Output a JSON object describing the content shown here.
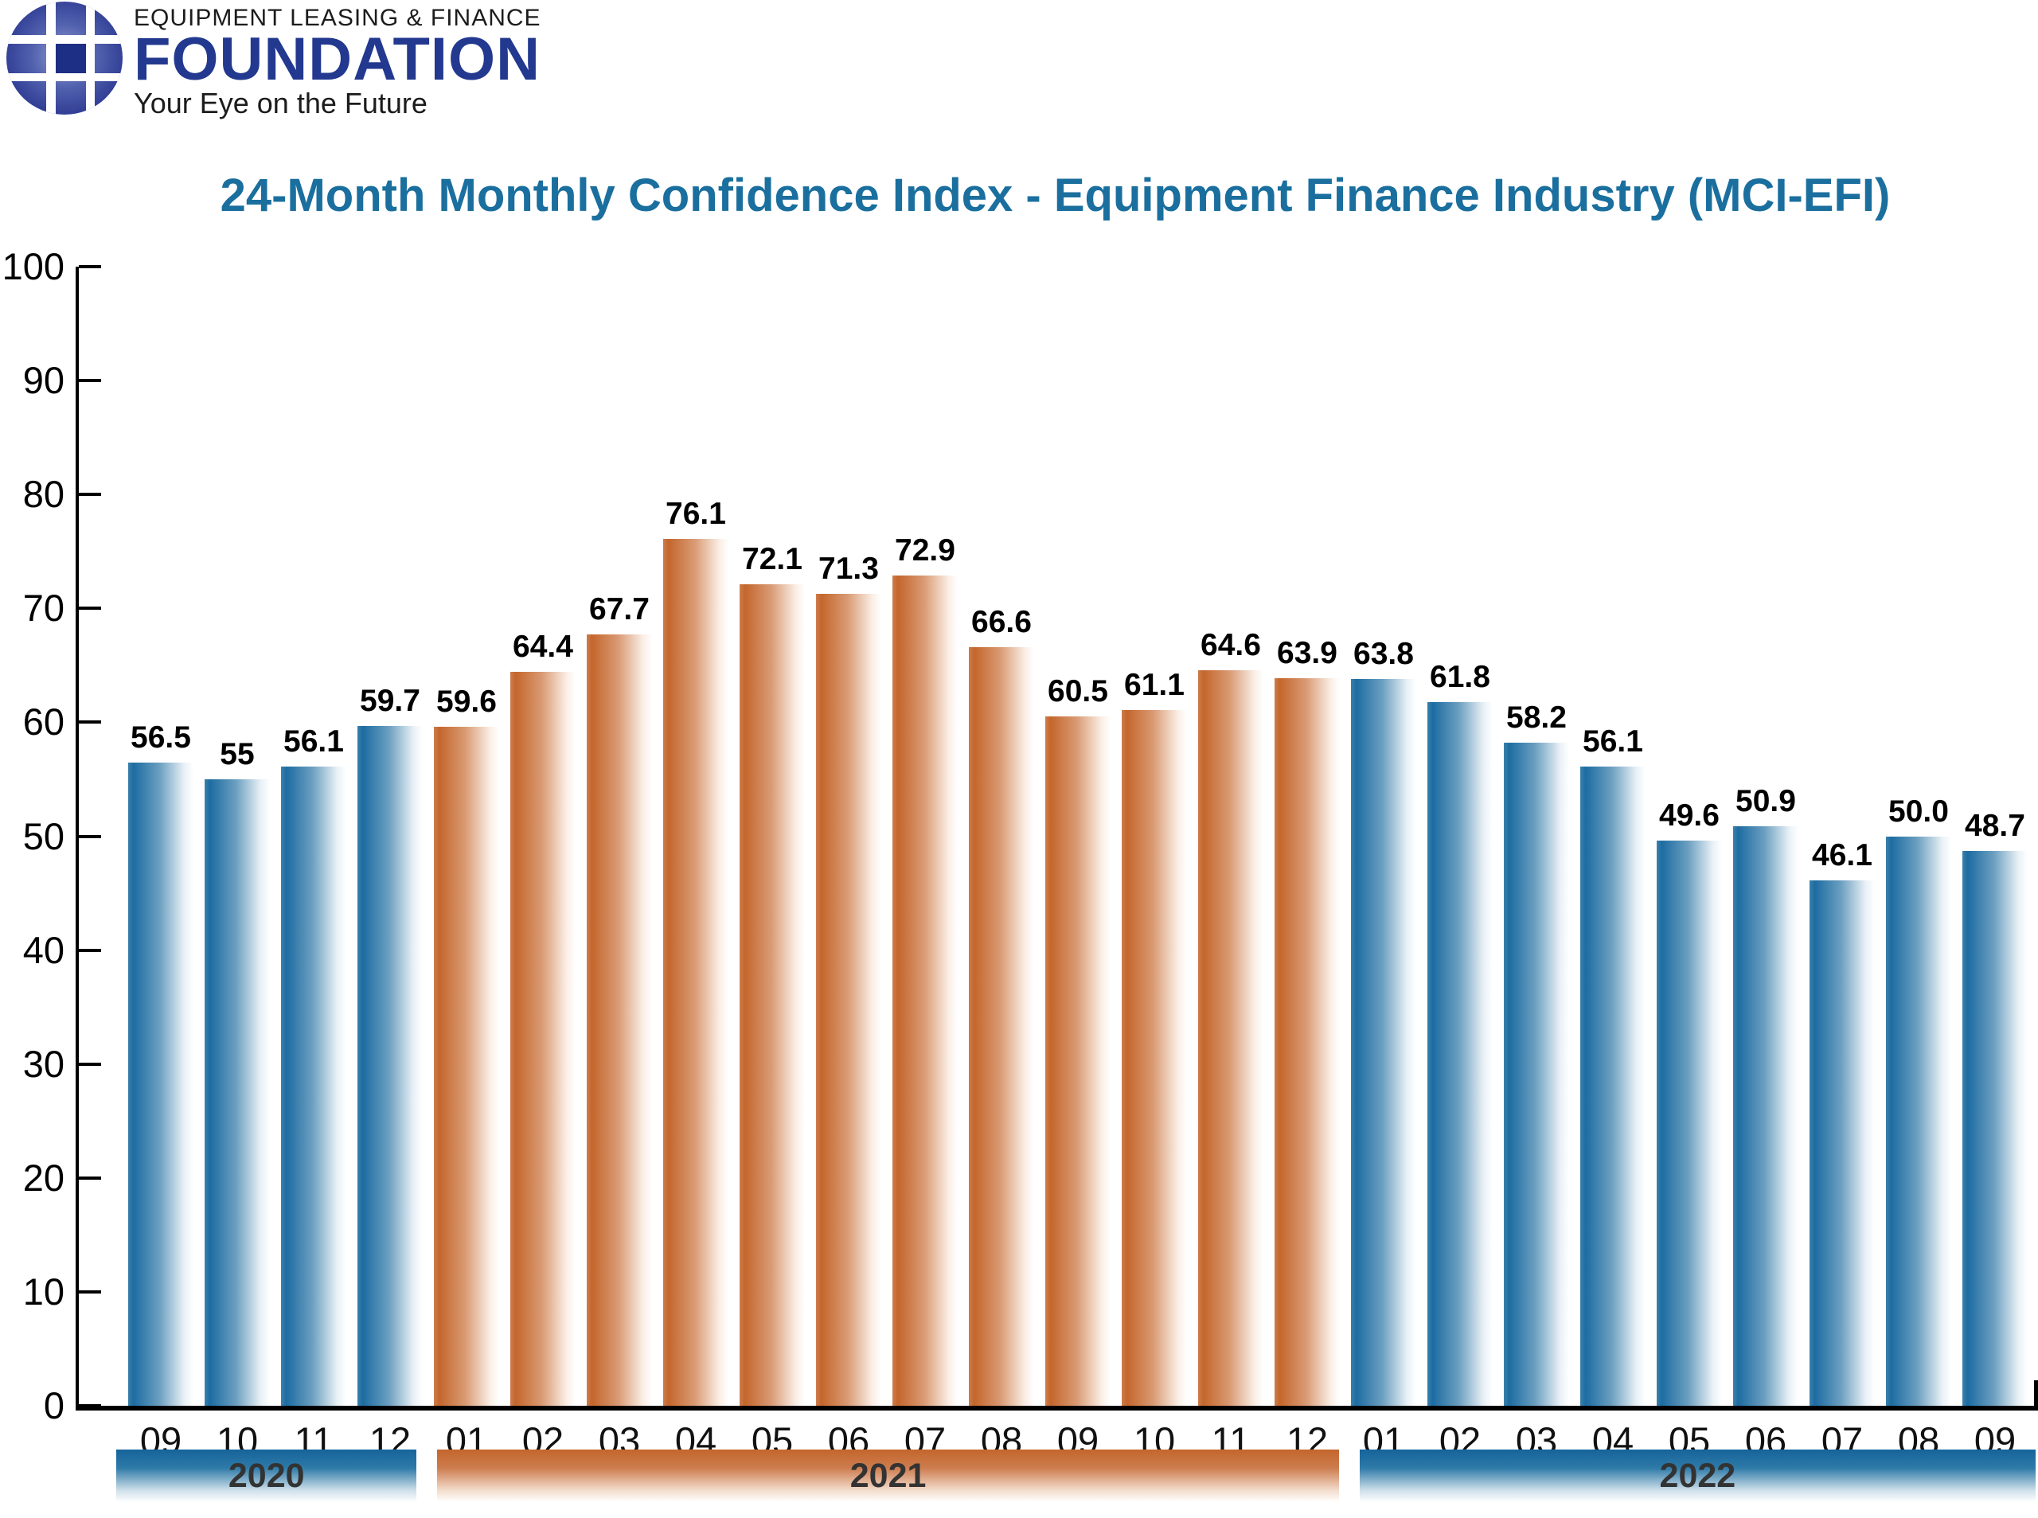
{
  "logo": {
    "line1": "EQUIPMENT LEASING & FINANCE",
    "name": "FOUNDATION",
    "tagline": "Your Eye on the Future"
  },
  "title": "24-Month Monthly Confidence Index - Equipment Finance Industry (MCI-EFI)",
  "colors": {
    "title_text": "#1a6f9e",
    "blue_bar": "#1d6ca2",
    "orange_bar": "#c4662c",
    "logo_navy": "#23398f"
  },
  "chart_data": {
    "type": "bar",
    "title": "24-Month Monthly Confidence Index - Equipment Finance Industry (MCI-EFI)",
    "xlabel": "",
    "ylabel": "",
    "ylim": [
      0,
      100
    ],
    "yticks": [
      0,
      10,
      20,
      30,
      40,
      50,
      60,
      70,
      80,
      90,
      100
    ],
    "grid": false,
    "legend": "none",
    "groups": [
      {
        "year": "2020",
        "theme": "blue",
        "months": [
          "09",
          "10",
          "11",
          "12"
        ],
        "values": [
          56.5,
          55,
          56.1,
          59.7
        ],
        "labels": [
          "56.5",
          "55",
          "56.1",
          "59.7"
        ]
      },
      {
        "year": "2021",
        "theme": "orange",
        "months": [
          "01",
          "02",
          "03",
          "04",
          "05",
          "06",
          "07",
          "08",
          "09",
          "10",
          "11",
          "12"
        ],
        "values": [
          59.6,
          64.4,
          67.7,
          76.1,
          72.1,
          71.3,
          72.9,
          66.6,
          60.5,
          61.1,
          64.6,
          63.9
        ],
        "labels": [
          "59.6",
          "64.4",
          "67.7",
          "76.1",
          "72.1",
          "71.3",
          "72.9",
          "66.6",
          "60.5",
          "61.1",
          "64.6",
          "63.9"
        ]
      },
      {
        "year": "2022",
        "theme": "blue",
        "months": [
          "01",
          "02",
          "03",
          "04",
          "05",
          "06",
          "07",
          "08",
          "09"
        ],
        "values": [
          63.8,
          61.8,
          58.2,
          56.1,
          49.6,
          50.9,
          46.1,
          50.0,
          48.7
        ],
        "labels": [
          "63.8",
          "61.8",
          "58.2",
          "56.1",
          "49.6",
          "50.9",
          "46.1",
          "50.0",
          "48.7"
        ]
      }
    ]
  }
}
